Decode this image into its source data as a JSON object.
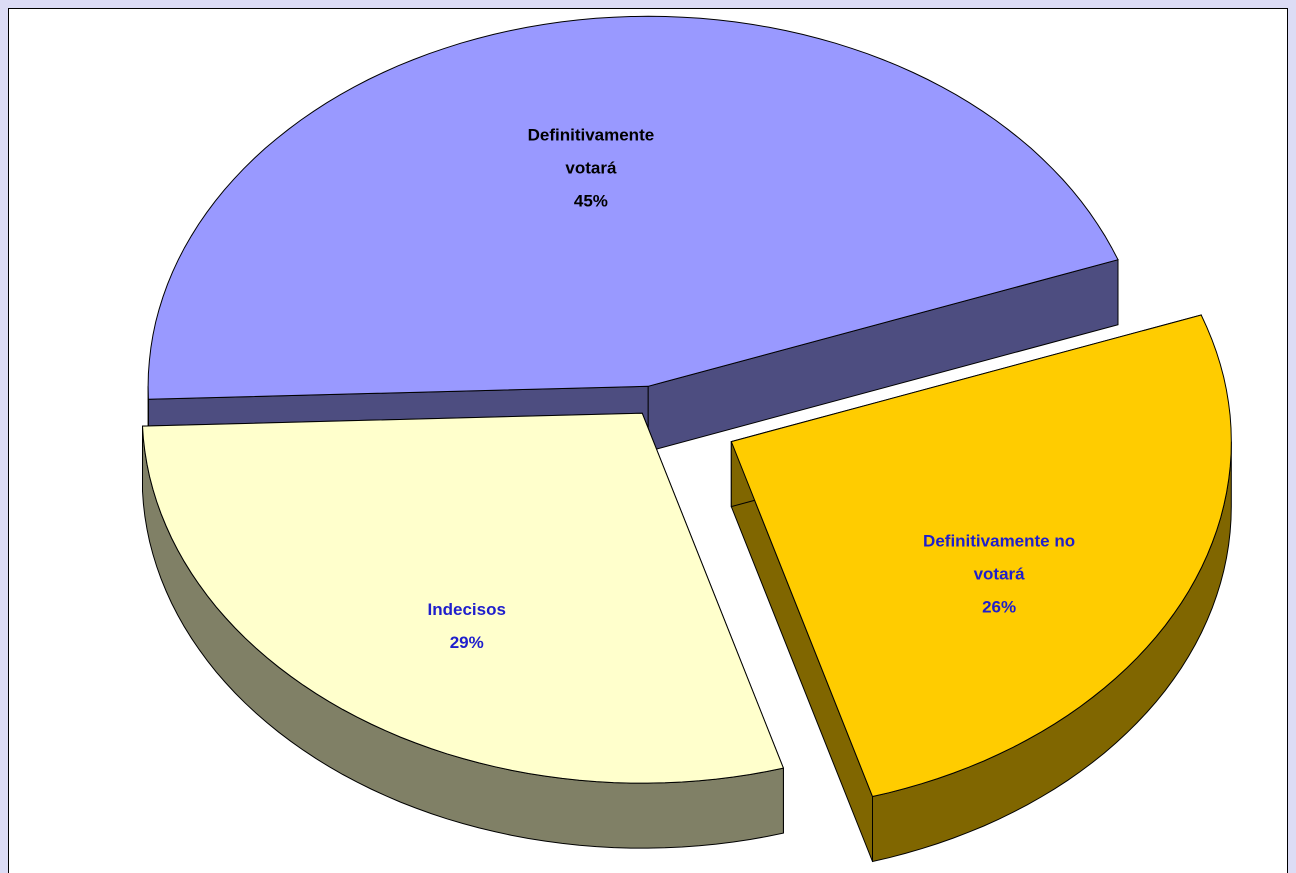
{
  "chart_data": {
    "type": "pie3d",
    "categories": [
      "Definitivamente votará",
      "Indecisos",
      "Definitivamente no votará"
    ],
    "values": [
      45,
      29,
      26
    ],
    "value_labels": [
      "45%",
      "29%",
      "26%"
    ],
    "colors": [
      "#9999ff",
      "#ffffcc",
      "#ffcc00"
    ],
    "label_colors": [
      "#000000",
      "#1f1fcc",
      "#1f1fcc"
    ]
  }
}
